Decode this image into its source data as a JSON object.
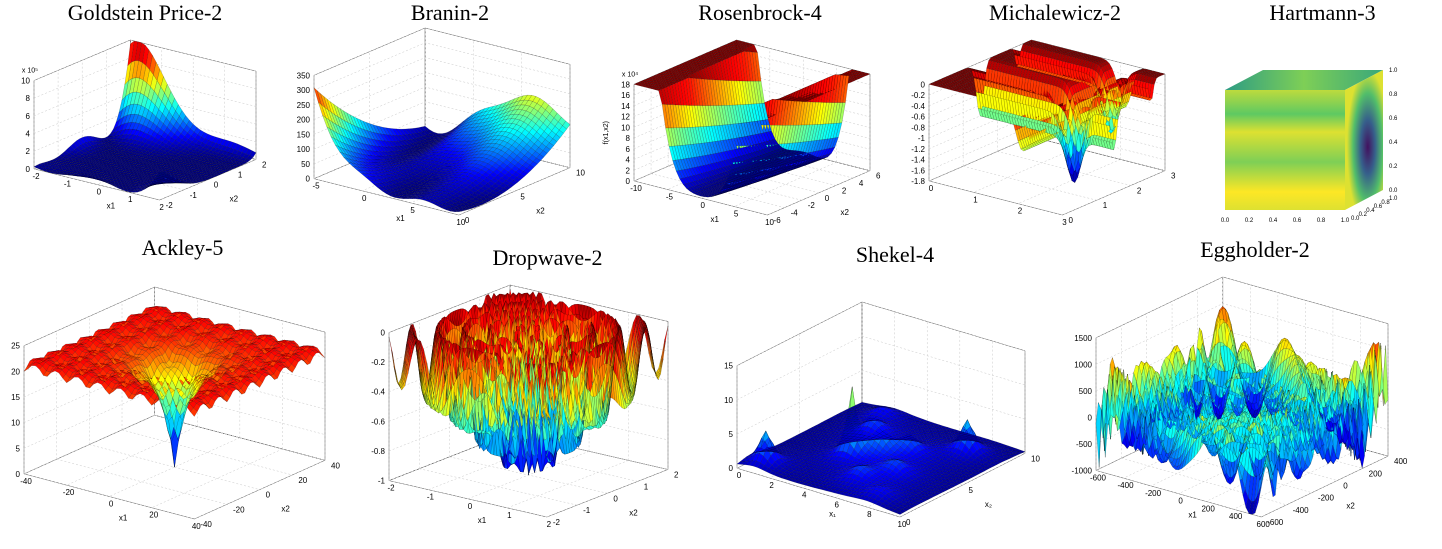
{
  "figure": {
    "panels": [
      {
        "title": "Goldstein Price-2"
      },
      {
        "title": "Branin-2"
      },
      {
        "title": "Rosenbrock-4"
      },
      {
        "title": "Michalewicz-2"
      },
      {
        "title": "Hartmann-3"
      },
      {
        "title": "Ackley-5"
      },
      {
        "title": "Dropwave-2"
      },
      {
        "title": "Shekel-4"
      },
      {
        "title": "Eggholder-2"
      }
    ]
  },
  "chart_data": [
    {
      "type": "surface",
      "title": "Goldstein Price-2",
      "function": "goldstein-price",
      "xlabel": "x1",
      "ylabel": "x2",
      "zlabel": "",
      "xticks": [
        "-2",
        "-1",
        "0",
        "1",
        "2"
      ],
      "yticks": [
        "-2",
        "-1",
        "0",
        "1",
        "2"
      ],
      "zticks": [
        "0",
        "2",
        "4",
        "6",
        "8",
        "10"
      ],
      "zscale_label": "x 10⁵",
      "xlim": [
        -2,
        2
      ],
      "ylim": [
        -2,
        2
      ],
      "zlim": [
        0,
        1000000
      ],
      "colormap": "jet",
      "grid": true
    },
    {
      "type": "surface",
      "title": "Branin-2",
      "function": "branin",
      "xlabel": "x1",
      "ylabel": "x2",
      "zlabel": "",
      "xticks": [
        "-5",
        "0",
        "5",
        "10"
      ],
      "yticks": [
        "0",
        "5",
        "10"
      ],
      "zticks": [
        "0",
        "50",
        "100",
        "150",
        "200",
        "250",
        "300",
        "350"
      ],
      "xlim": [
        -5,
        10
      ],
      "ylim": [
        0,
        15
      ],
      "zlim": [
        0,
        350
      ],
      "colormap": "jet",
      "grid": true
    },
    {
      "type": "surface",
      "title": "Rosenbrock-4",
      "function": "rosenbrock",
      "xlabel": "x1",
      "ylabel": "x2",
      "zlabel": "f(x1,x2)",
      "xticks": [
        "-10",
        "-5",
        "0",
        "5",
        "10"
      ],
      "yticks": [
        "-6",
        "-4",
        "-2",
        "0",
        "2",
        "4",
        "6"
      ],
      "zticks": [
        "0",
        "2",
        "4",
        "6",
        "8",
        "10",
        "12",
        "14",
        "16",
        "18"
      ],
      "zscale_label": "x 10⁴",
      "xlim": [
        -10,
        10
      ],
      "ylim": [
        -6,
        6
      ],
      "zlim": [
        0,
        180000
      ],
      "colormap": "jet",
      "grid": true
    },
    {
      "type": "surface",
      "title": "Michalewicz-2",
      "function": "michalewicz",
      "xlabel": "",
      "ylabel": "",
      "xticks": [
        "0",
        "1",
        "2",
        "3"
      ],
      "yticks": [
        "0",
        "1",
        "2",
        "3"
      ],
      "zticks": [
        "-1.8",
        "-1.6",
        "-1.4",
        "-1.2",
        "-1",
        "-0.8",
        "-0.6",
        "-0.4",
        "-0.2",
        "0"
      ],
      "xlim": [
        0,
        3.14
      ],
      "ylim": [
        0,
        3.14
      ],
      "zlim": [
        -1.8,
        0
      ],
      "colormap": "jet",
      "grid": true
    },
    {
      "type": "volume",
      "title": "Hartmann-3",
      "function": "hartmann-3",
      "xticks": [
        "0.0",
        "0.2",
        "0.4",
        "0.6",
        "0.8",
        "1.0"
      ],
      "yticks": [
        "0.0",
        "0.2",
        "0.4",
        "0.6",
        "0.8",
        "1.0"
      ],
      "zticks": [
        "0.0",
        "0.2",
        "0.4",
        "0.6",
        "0.8",
        "1.0"
      ],
      "xlim": [
        0,
        1
      ],
      "ylim": [
        0,
        1
      ],
      "zlim": [
        0,
        1
      ],
      "colormap": "viridis",
      "grid": true
    },
    {
      "type": "surface",
      "title": "Ackley-5",
      "function": "ackley",
      "xlabel": "x1",
      "ylabel": "x2",
      "xticks": [
        "-40",
        "-20",
        "0",
        "20",
        "40"
      ],
      "yticks": [
        "-40",
        "-20",
        "0",
        "20",
        "40"
      ],
      "zticks": [
        "0",
        "5",
        "10",
        "15",
        "20",
        "25"
      ],
      "xlim": [
        -40,
        40
      ],
      "ylim": [
        -40,
        40
      ],
      "zlim": [
        0,
        25
      ],
      "colormap": "jet",
      "grid": true
    },
    {
      "type": "surface",
      "title": "Dropwave-2",
      "function": "dropwave",
      "xlabel": "x1",
      "ylabel": "x2",
      "xticks": [
        "-2",
        "-1",
        "0",
        "1",
        "2"
      ],
      "yticks": [
        "-2",
        "-1",
        "0",
        "1",
        "2"
      ],
      "zticks": [
        "-1",
        "-0.8",
        "-0.6",
        "-0.4",
        "-0.2",
        "0"
      ],
      "xlim": [
        -2,
        2
      ],
      "ylim": [
        -2,
        2
      ],
      "zlim": [
        -1,
        0
      ],
      "colormap": "jet",
      "grid": true
    },
    {
      "type": "surface",
      "title": "Shekel-4",
      "function": "shekel",
      "xlabel": "x₁",
      "ylabel": "x₂",
      "xticks": [
        "0",
        "2",
        "4",
        "6",
        "8",
        "10"
      ],
      "yticks": [
        "0",
        "5",
        "10"
      ],
      "zticks": [
        "0",
        "5",
        "10",
        "15"
      ],
      "xlim": [
        0,
        10
      ],
      "ylim": [
        0,
        10
      ],
      "zlim": [
        0,
        15
      ],
      "colormap": "jet",
      "grid": true
    },
    {
      "type": "surface",
      "title": "Eggholder-2",
      "function": "eggholder",
      "xlabel": "x1",
      "ylabel": "x2",
      "xticks": [
        "-600",
        "-400",
        "-200",
        "0",
        "200",
        "400",
        "600"
      ],
      "yticks": [
        "-600",
        "-400",
        "-200",
        "0",
        "200",
        "400"
      ],
      "zticks": [
        "-1000",
        "-500",
        "0",
        "500",
        "1000",
        "1500"
      ],
      "xlim": [
        -600,
        600
      ],
      "ylim": [
        -600,
        600
      ],
      "zlim": [
        -1000,
        1500
      ],
      "colormap": "jet",
      "grid": true
    }
  ]
}
